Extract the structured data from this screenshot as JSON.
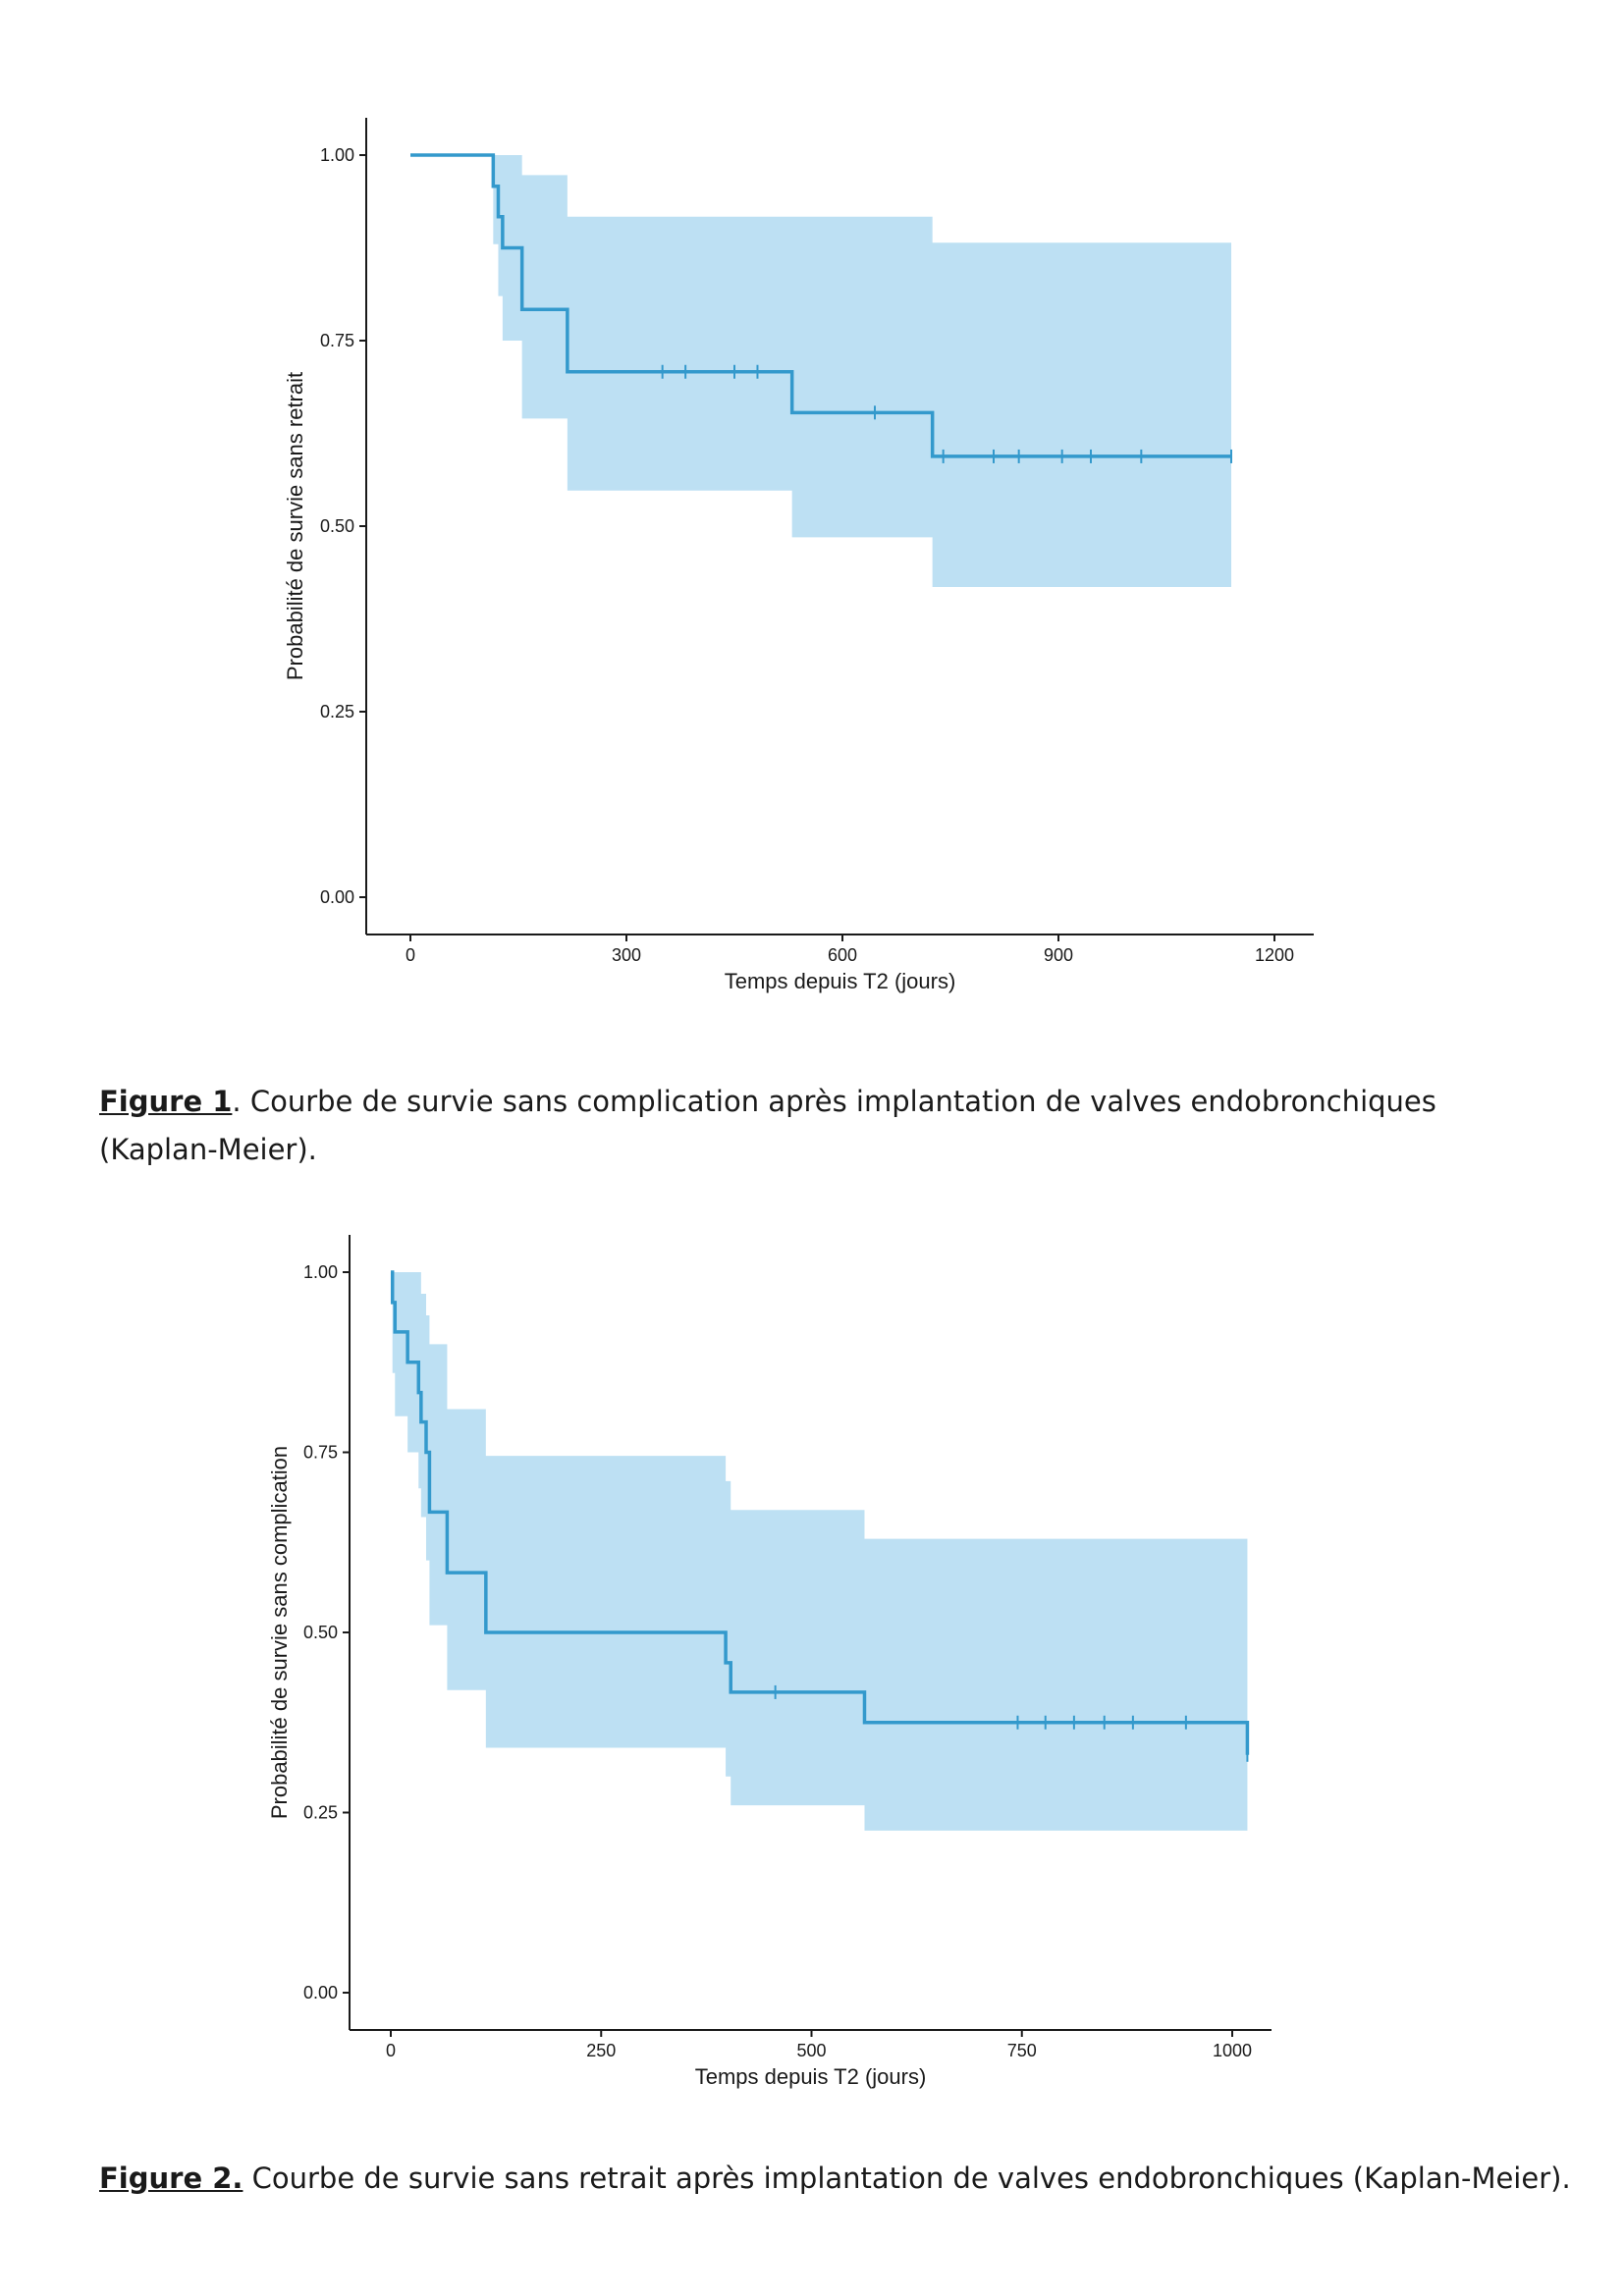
{
  "figures": [
    {
      "caption_label": "Figure 1",
      "caption_text": ". Courbe de survie sans complication après implantation de valves endobronchiques (Kaplan-Meier)."
    },
    {
      "caption_label": "Figure 2.",
      "caption_text": " Courbe de survie sans retrait après implantation de valves endobronchiques (Kaplan-Meier)."
    }
  ],
  "chart_data": [
    {
      "type": "line",
      "xlabel": "Temps depuis T2 (jours)",
      "ylabel": "Probabilité de survie sans retrait",
      "xlim": [
        0,
        1200
      ],
      "ylim": [
        0,
        1
      ],
      "x_ticks": [
        0,
        300,
        600,
        900,
        1200
      ],
      "x_tick_labels": [
        "0",
        "300",
        "600",
        "900",
        "1200"
      ],
      "y_ticks": [
        0,
        0.25,
        0.5,
        0.75,
        1
      ],
      "y_tick_labels": [
        "0.00",
        "0.25",
        "0.50",
        "0.75",
        "1.00"
      ],
      "grid": false,
      "line_color": "#3399cc",
      "band_color": "#bde0f3",
      "series": [
        {
          "step_x": [
            0,
            115,
            122,
            128,
            155,
            218,
            530,
            725,
            1140
          ],
          "step_y": [
            1.0,
            0.958,
            0.917,
            0.875,
            0.792,
            0.708,
            0.653,
            0.594,
            0.594
          ],
          "band_lower": [
            1.0,
            0.88,
            0.81,
            0.75,
            0.645,
            0.548,
            0.485,
            0.418,
            0.418
          ],
          "band_upper": [
            1.0,
            1.0,
            1.0,
            1.0,
            0.973,
            0.917,
            0.917,
            0.882,
            0.847
          ],
          "censor_x": [
            350,
            382,
            450,
            482,
            645,
            740,
            810,
            845,
            905,
            945,
            1015,
            1140
          ]
        }
      ]
    },
    {
      "type": "line",
      "xlabel": "Temps depuis T2 (jours)",
      "ylabel": "Probabilité de survie sans complication",
      "xlim": [
        0,
        1000
      ],
      "ylim": [
        0,
        1
      ],
      "x_ticks": [
        0,
        250,
        500,
        750,
        1000
      ],
      "x_tick_labels": [
        "0",
        "250",
        "500",
        "750",
        "1000"
      ],
      "y_ticks": [
        0,
        0.25,
        0.5,
        0.75,
        1
      ],
      "y_tick_labels": [
        "0.00",
        "0.25",
        "0.50",
        "0.75",
        "1.00"
      ],
      "grid": false,
      "line_color": "#3399cc",
      "band_color": "#bde0f3",
      "series": [
        {
          "step_x": [
            0,
            2,
            5,
            20,
            33,
            36,
            42,
            46,
            67,
            113,
            398,
            404,
            563,
            1018
          ],
          "step_y": [
            1.0,
            0.958,
            0.917,
            0.875,
            0.833,
            0.792,
            0.75,
            0.667,
            0.583,
            0.5,
            0.458,
            0.417,
            0.375,
            0.33
          ],
          "band_lower": [
            1.0,
            0.86,
            0.8,
            0.75,
            0.7,
            0.66,
            0.6,
            0.51,
            0.42,
            0.34,
            0.3,
            0.26,
            0.225,
            0.185
          ],
          "band_upper": [
            1.0,
            1.0,
            1.0,
            1.0,
            1.0,
            0.97,
            0.94,
            0.9,
            0.81,
            0.745,
            0.71,
            0.67,
            0.63,
            0.59
          ],
          "censor_x": [
            457,
            745,
            778,
            812,
            848,
            882,
            945,
            1018
          ]
        }
      ]
    }
  ]
}
